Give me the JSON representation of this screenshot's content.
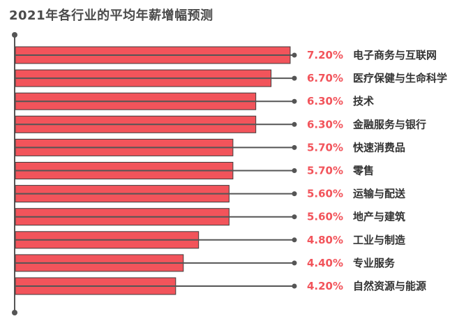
{
  "chart_data": {
    "type": "bar",
    "orientation": "horizontal",
    "title": "2021年各行业的平均年薪增幅预测",
    "categories": [
      "电子商务与互联网",
      "医疗保健与生命科学",
      "技术",
      "金融服务与银行",
      "快速消费品",
      "零售",
      "运输与配送",
      "地产与建筑",
      "工业与制造",
      "专业服务",
      "自然资源与能源"
    ],
    "values": [
      7.2,
      6.7,
      6.3,
      6.3,
      5.7,
      5.7,
      5.6,
      5.6,
      4.8,
      4.4,
      4.2
    ],
    "value_labels": [
      "7.20%",
      "6.70%",
      "6.30%",
      "6.30%",
      "5.70%",
      "5.70%",
      "5.60%",
      "5.60%",
      "4.80%",
      "4.40%",
      "4.20%"
    ],
    "unit": "%",
    "xlim": [
      0,
      7.2
    ],
    "colors": {
      "bar": "#f2545b",
      "bar_border": "#3d3d3d",
      "leader_line": "#555555",
      "value_label": "#f2545b",
      "category_label": "#333333",
      "title": "#4a4a4a",
      "axis": "#555555"
    }
  }
}
